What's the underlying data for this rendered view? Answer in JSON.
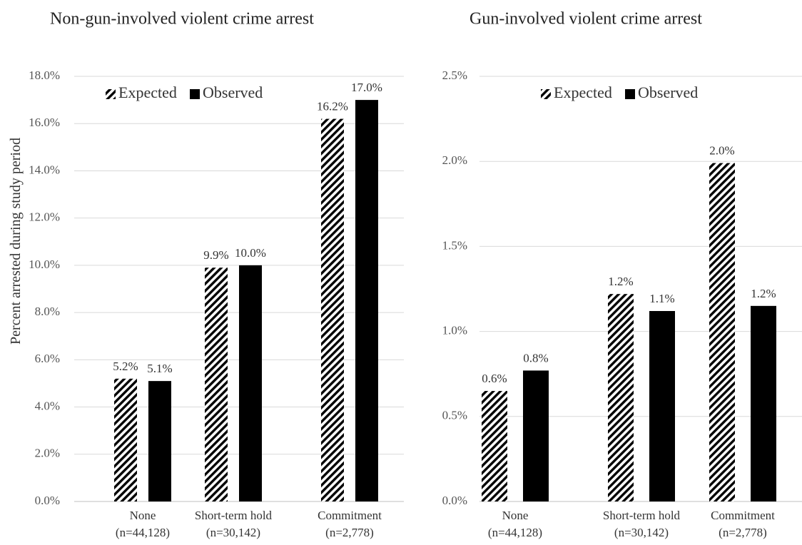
{
  "y_axis_label": "Percent arrested during study period",
  "colors": {
    "observed": "#000000",
    "expected": "#000000",
    "grid": "#d9d9d9",
    "text": "#333333",
    "tick_text": "#555555"
  },
  "chart_data": [
    {
      "type": "bar",
      "title": "Non-gun-involved violent crime arrest",
      "categories": [
        "None",
        "Short-term hold",
        "Commitment"
      ],
      "category_sublabels": [
        "(n=44,128)",
        "(n=30,142)",
        "(n=2,778)"
      ],
      "series": [
        {
          "name": "Expected",
          "pattern": "diagonal-hatch",
          "values": [
            5.2,
            9.9,
            16.2
          ],
          "labels": [
            "5.2%",
            "9.9%",
            "16.2%"
          ]
        },
        {
          "name": "Observed",
          "pattern": "solid",
          "values": [
            5.1,
            10.0,
            17.0
          ],
          "labels": [
            "5.1%",
            "10.0%",
            "17.0%"
          ]
        }
      ],
      "ylim": [
        0,
        18
      ],
      "yticks": [
        0,
        2,
        4,
        6,
        8,
        10,
        12,
        14,
        16,
        18
      ],
      "ytick_labels": [
        "0.0%",
        "2.0%",
        "4.0%",
        "6.0%",
        "8.0%",
        "10.0%",
        "12.0%",
        "14.0%",
        "16.0%",
        "18.0%"
      ],
      "ylabel": "Percent arrested during study period",
      "grid": true,
      "legend": "top-left inside"
    },
    {
      "type": "bar",
      "title": "Gun-involved violent crime arrest",
      "categories": [
        "None",
        "Short-term hold",
        "Commitment"
      ],
      "category_sublabels": [
        "(n=44,128)",
        "(n=30,142)",
        "(n=2,778)"
      ],
      "series": [
        {
          "name": "Expected",
          "pattern": "diagonal-hatch",
          "values": [
            0.65,
            1.22,
            1.99
          ],
          "labels": [
            "0.6%",
            "1.2%",
            "2.0%"
          ]
        },
        {
          "name": "Observed",
          "pattern": "solid",
          "values": [
            0.77,
            1.12,
            1.15
          ],
          "labels": [
            "0.8%",
            "1.1%",
            "1.2%"
          ]
        }
      ],
      "ylim": [
        0,
        2.5
      ],
      "yticks": [
        0,
        0.5,
        1.0,
        1.5,
        2.0,
        2.5
      ],
      "ytick_labels": [
        "0.0%",
        "0.5%",
        "1.0%",
        "1.5%",
        "2.0%",
        "2.5%"
      ],
      "grid": true,
      "legend": "top-center inside"
    }
  ]
}
